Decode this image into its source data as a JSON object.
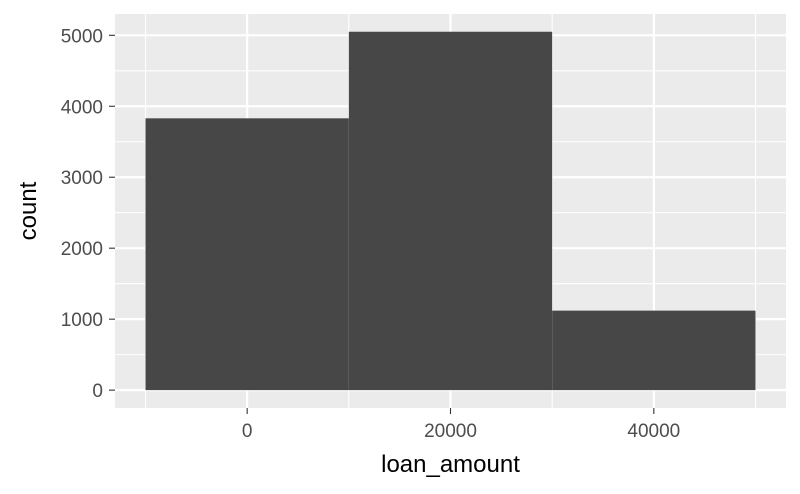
{
  "chart_data": {
    "type": "bar",
    "title": "",
    "xlabel": "loan_amount",
    "ylabel": "count",
    "bins": [
      {
        "x0": -10000,
        "x1": 10000,
        "count": 3830
      },
      {
        "x0": 10000,
        "x1": 30000,
        "count": 5050
      },
      {
        "x0": 30000,
        "x1": 50000,
        "count": 1120
      }
    ],
    "xlim": [
      -13000,
      53000
    ],
    "ylim": [
      -252,
      5300
    ],
    "x_ticks": [
      0,
      20000,
      40000
    ],
    "x_tick_labels": [
      "0",
      "20000",
      "40000"
    ],
    "y_ticks": [
      0,
      1000,
      2000,
      3000,
      4000,
      5000
    ],
    "y_tick_labels": [
      "0",
      "1000",
      "2000",
      "3000",
      "4000",
      "5000"
    ],
    "grid": true,
    "colors": {
      "bar": "#474747",
      "panel": "#ebebeb",
      "grid": "#ffffff"
    }
  }
}
